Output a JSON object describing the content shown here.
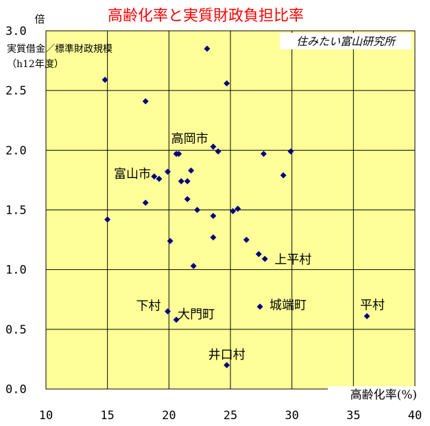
{
  "chart_data": {
    "type": "scatter",
    "title": "高齢化率と実質財政負担比率",
    "y_unit": "倍",
    "ylabel_lines": [
      "実質借金／標準財政規模",
      "（h12年度）"
    ],
    "xlabel": "高齢化率(%)",
    "watermark": "住みたい富山研究所",
    "xlim": [
      10,
      40
    ],
    "ylim": [
      0,
      3
    ],
    "x_ticks": [
      10,
      15,
      20,
      25,
      30,
      35,
      40
    ],
    "x_tick_labels": [
      "10",
      "15",
      "20",
      "25",
      "30",
      "35",
      "40"
    ],
    "y_ticks": [
      0,
      0.5,
      1.0,
      1.5,
      2.0,
      2.5,
      3.0
    ],
    "y_tick_labels": [
      "0.0",
      "0.5",
      "1.0",
      "1.5",
      "2.0",
      "2.5",
      "3.0"
    ],
    "grid": true,
    "plot_bg": "#ffff99",
    "marker_color": "#000080",
    "points": [
      {
        "x": 14.8,
        "y": 2.59
      },
      {
        "x": 15.0,
        "y": 1.42
      },
      {
        "x": 18.1,
        "y": 2.41
      },
      {
        "x": 18.1,
        "y": 1.56
      },
      {
        "x": 18.8,
        "y": 1.78
      },
      {
        "x": 19.2,
        "y": 1.76
      },
      {
        "x": 19.9,
        "y": 1.82
      },
      {
        "x": 19.9,
        "y": 0.65
      },
      {
        "x": 20.1,
        "y": 1.24
      },
      {
        "x": 20.6,
        "y": 1.97
      },
      {
        "x": 20.8,
        "y": 1.97
      },
      {
        "x": 20.6,
        "y": 0.58
      },
      {
        "x": 21.0,
        "y": 1.74
      },
      {
        "x": 21.5,
        "y": 1.74
      },
      {
        "x": 21.5,
        "y": 1.59
      },
      {
        "x": 21.8,
        "y": 1.83
      },
      {
        "x": 22.0,
        "y": 1.03
      },
      {
        "x": 22.3,
        "y": 1.5
      },
      {
        "x": 23.1,
        "y": 2.85
      },
      {
        "x": 23.6,
        "y": 2.03
      },
      {
        "x": 23.6,
        "y": 1.45
      },
      {
        "x": 23.6,
        "y": 1.27
      },
      {
        "x": 24.0,
        "y": 1.99
      },
      {
        "x": 24.7,
        "y": 2.56
      },
      {
        "x": 24.7,
        "y": 0.2
      },
      {
        "x": 25.2,
        "y": 1.49
      },
      {
        "x": 25.6,
        "y": 1.51
      },
      {
        "x": 26.3,
        "y": 1.25
      },
      {
        "x": 27.3,
        "y": 1.13
      },
      {
        "x": 27.4,
        "y": 0.69
      },
      {
        "x": 27.7,
        "y": 1.97
      },
      {
        "x": 27.8,
        "y": 1.09
      },
      {
        "x": 29.3,
        "y": 1.79
      },
      {
        "x": 29.9,
        "y": 1.99
      },
      {
        "x": 36.1,
        "y": 0.61
      }
    ],
    "annotations": [
      {
        "text": "高岡市",
        "x": 20.8,
        "y": 1.97
      },
      {
        "text": "富山市",
        "x": 19.2,
        "y": 1.76
      },
      {
        "text": "上平村",
        "x": 27.8,
        "y": 1.09
      },
      {
        "text": "下村",
        "x": 19.9,
        "y": 0.65
      },
      {
        "text": "大門町",
        "x": 20.6,
        "y": 0.58
      },
      {
        "text": "城端町",
        "x": 27.4,
        "y": 0.69
      },
      {
        "text": "平村",
        "x": 36.1,
        "y": 0.61
      },
      {
        "text": "井口村",
        "x": 24.7,
        "y": 0.2
      }
    ]
  }
}
